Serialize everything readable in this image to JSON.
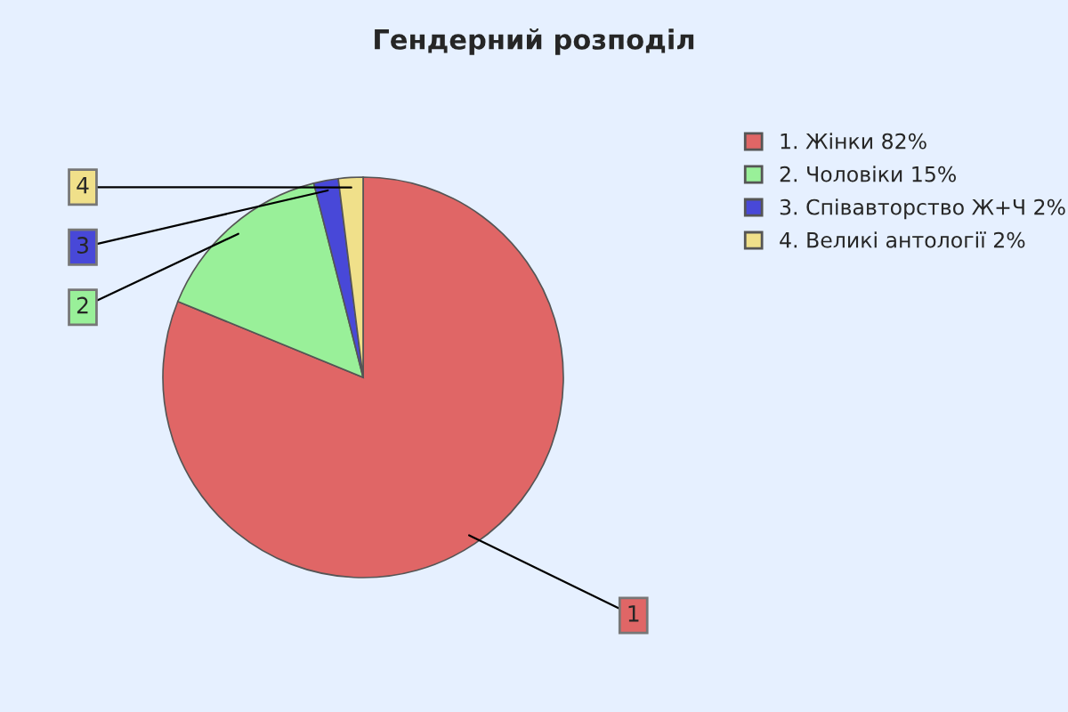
{
  "chart_data": {
    "type": "pie",
    "title": "Гендерний розподіл",
    "categories": [
      "1. Жінки 82%",
      "2. Чоловіки 15%",
      "3. Співавторство Ж+Ч 2%",
      "4. Великі антології 2%"
    ],
    "values": [
      82,
      15,
      2,
      2
    ],
    "colors": [
      "#e06666",
      "#99f099",
      "#4848d8",
      "#f0e08a"
    ],
    "legend": "right",
    "annotations": [
      {
        "text": "1",
        "x": "1. Жінки 82%"
      },
      {
        "text": "2",
        "x": "2. Чоловіки 15%"
      },
      {
        "text": "3",
        "x": "3. Співавторство Ж+Ч 2%"
      },
      {
        "text": "4",
        "x": "4. Великі антології 2%"
      }
    ]
  }
}
